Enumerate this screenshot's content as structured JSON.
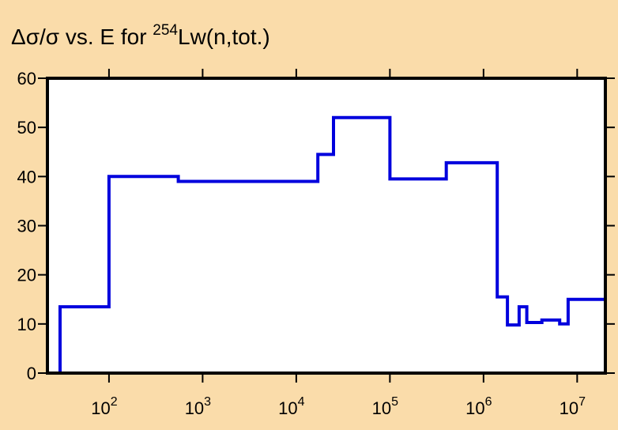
{
  "chart_data": {
    "type": "line",
    "step": true,
    "title": {
      "prefix": "Δσ/σ vs. E for ",
      "superscript": "254",
      "suffix": "Lw(n,tot.)"
    },
    "xlabel": "",
    "ylabel": "",
    "xscale": "log",
    "xlim": [
      22,
      20000000
    ],
    "ylim": [
      0,
      60
    ],
    "x_ticks": [
      {
        "base": "10",
        "exp": "2"
      },
      {
        "base": "10",
        "exp": "3"
      },
      {
        "base": "10",
        "exp": "4"
      },
      {
        "base": "10",
        "exp": "5"
      },
      {
        "base": "10",
        "exp": "6"
      },
      {
        "base": "10",
        "exp": "7"
      }
    ],
    "y_ticks": [
      "0",
      "10",
      "20",
      "30",
      "40",
      "50",
      "60"
    ],
    "grid": false,
    "line_color": "#0000dd",
    "background_color": "#fadcaa",
    "plot_area_color": "#ffffff",
    "series": [
      {
        "x": [
          30,
          100,
          550,
          3000,
          17000,
          25000,
          100000,
          400000,
          900000,
          1400000,
          1800000,
          2400000,
          2900000,
          4200000,
          6500000,
          8000000,
          20000000
        ],
        "y": [
          13.5,
          40,
          39,
          39,
          44.5,
          52,
          39.5,
          42.8,
          42.8,
          15.5,
          9.8,
          13.5,
          10.3,
          10.8,
          10,
          15,
          15
        ]
      }
    ]
  }
}
